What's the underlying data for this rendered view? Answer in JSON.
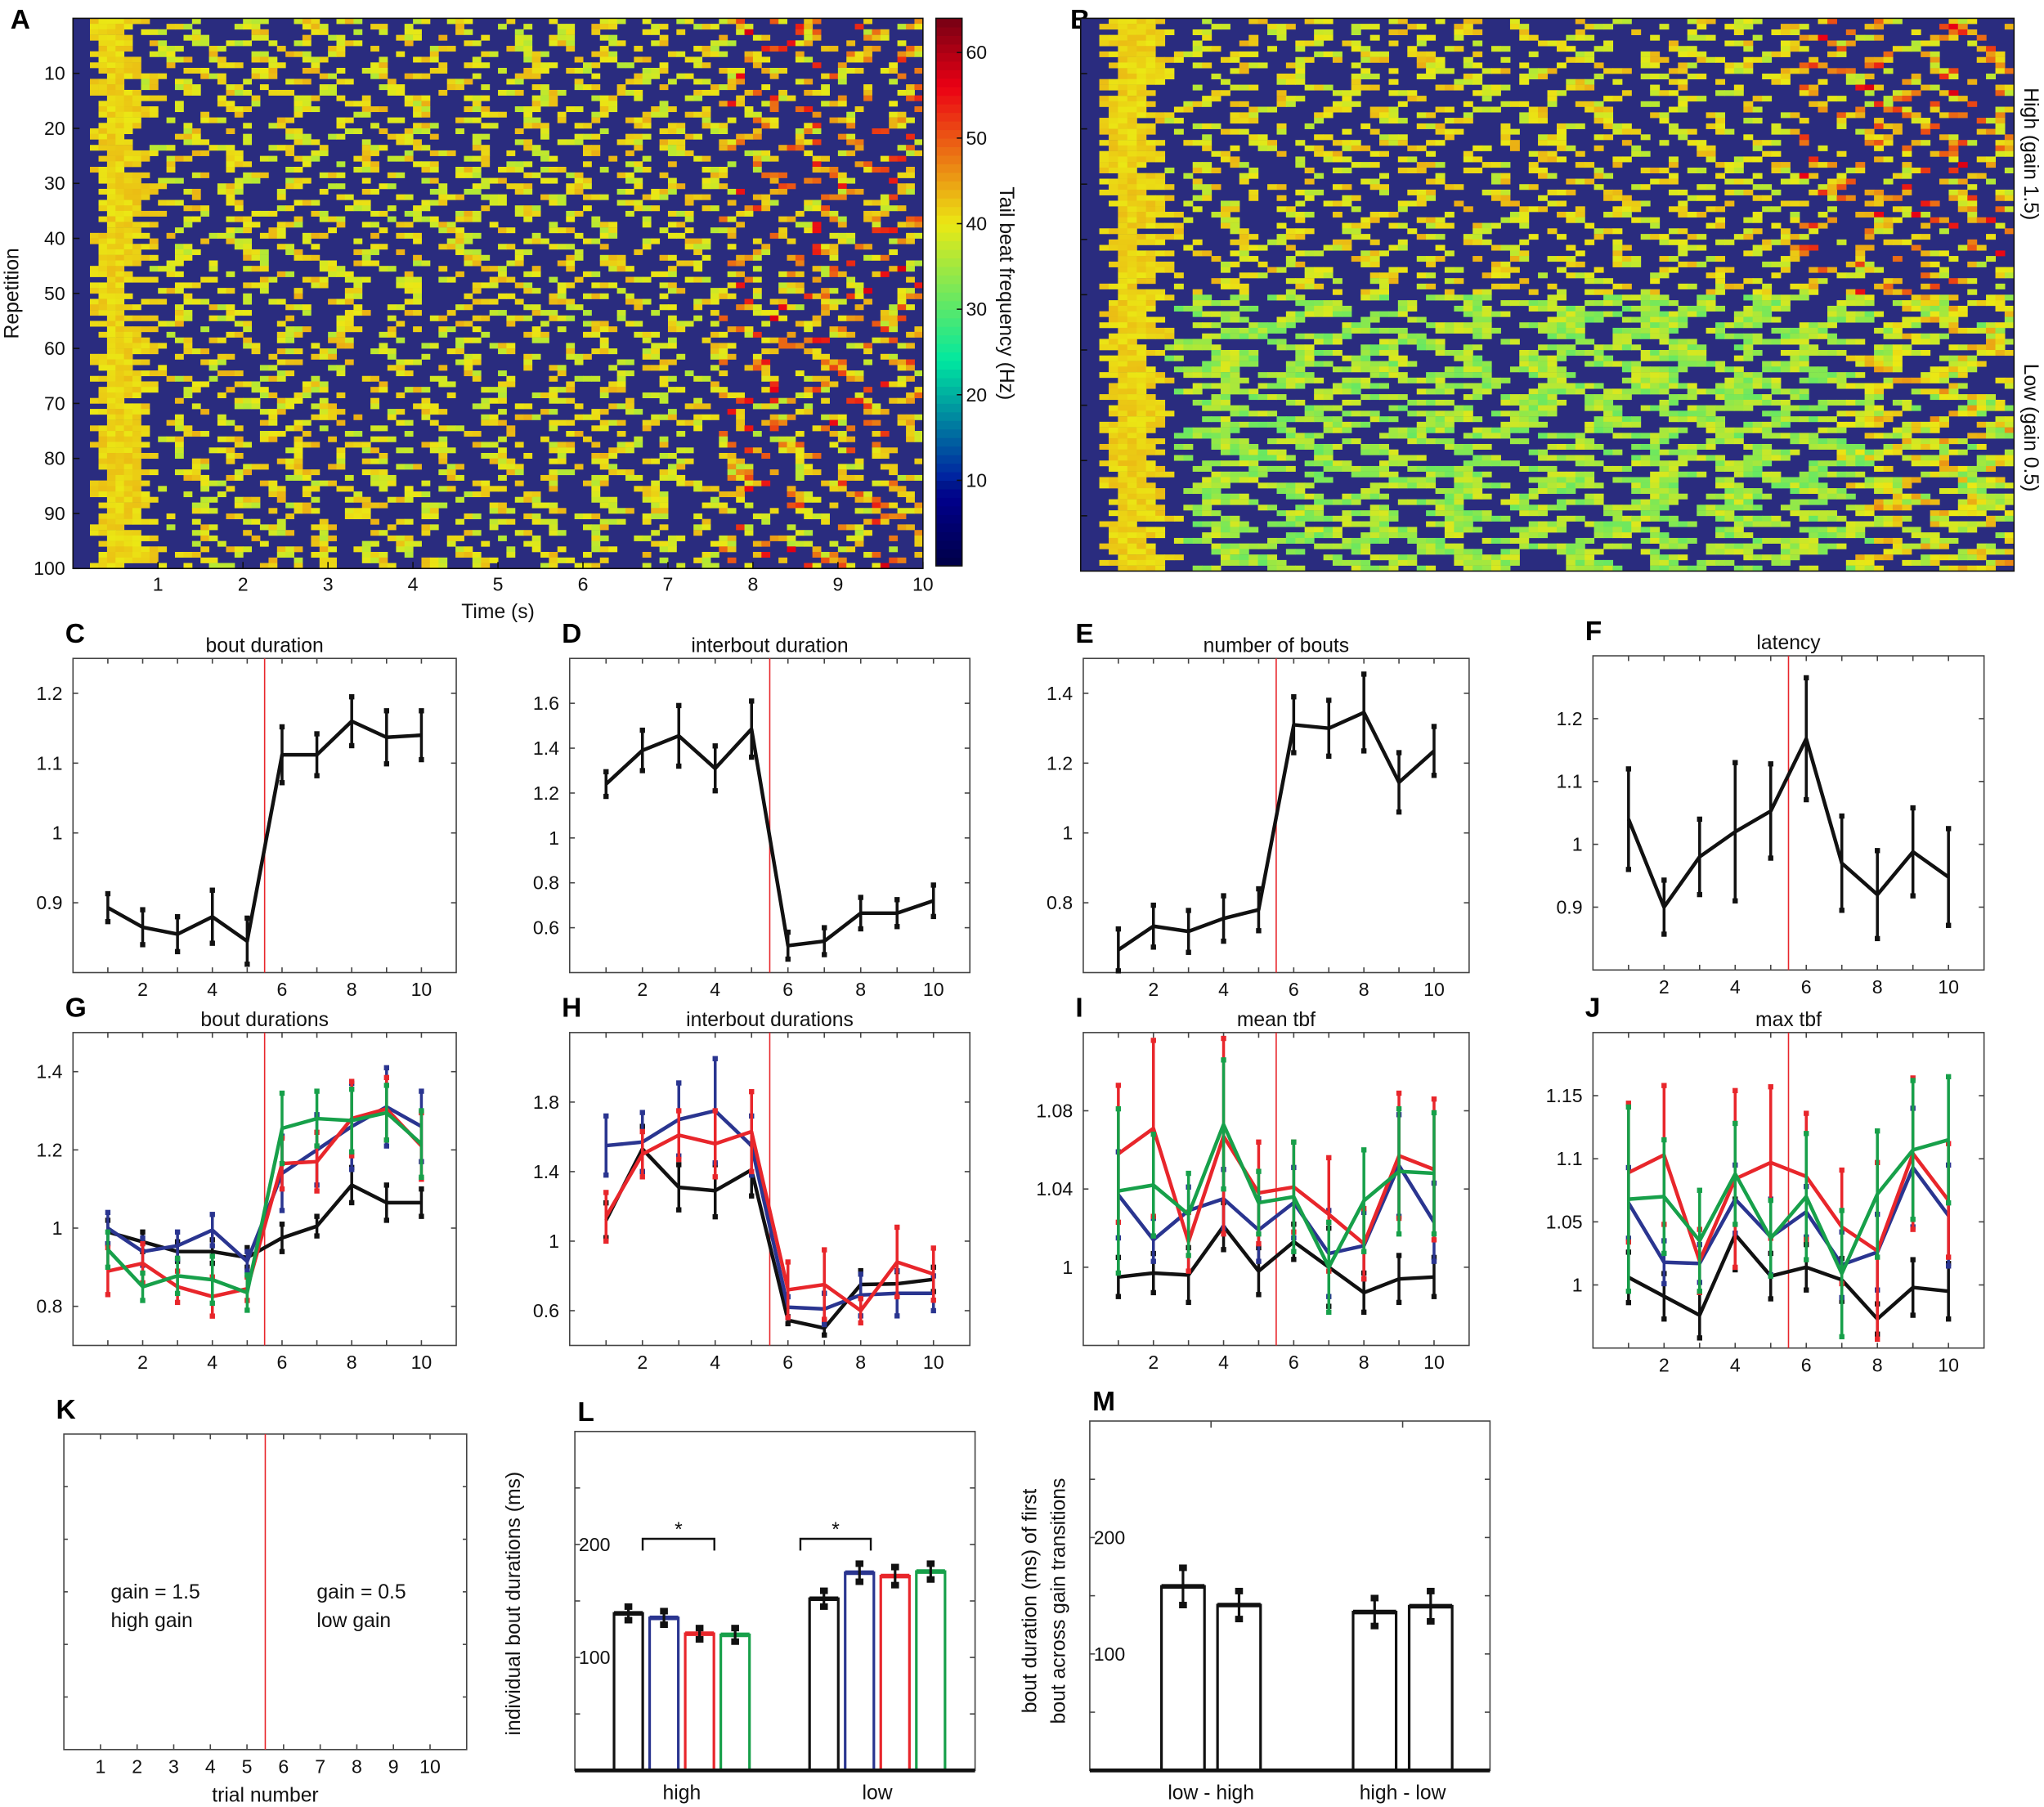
{
  "chart_data": [
    {
      "panel": "A",
      "type": "heatmap",
      "xlabel": "Time (s)",
      "ylabel": "Repetition",
      "rows": 100,
      "xlim": [
        0,
        10
      ],
      "xticks": [
        1,
        2,
        3,
        4,
        5,
        6,
        7,
        8,
        9,
        10
      ],
      "yticks": [
        10,
        20,
        30,
        40,
        50,
        60,
        70,
        80,
        90,
        100
      ],
      "colorbar": {
        "label": "Tail beat frequency (Hz)",
        "range": [
          0,
          64
        ],
        "ticks": [
          10,
          20,
          30,
          40,
          50,
          60
        ]
      }
    },
    {
      "panel": "B",
      "type": "heatmap",
      "rows": 100,
      "xlim": [
        0,
        10
      ],
      "right_labels": [
        "High (gain 1.5)",
        "Low (gain 0.5)"
      ]
    },
    {
      "panel": "C",
      "type": "line",
      "title": "bout duration",
      "x": [
        1,
        2,
        3,
        4,
        5,
        6,
        7,
        8,
        9,
        10
      ],
      "xlim": [
        0,
        11
      ],
      "ylim": [
        0.8,
        1.25
      ],
      "xticks": [
        2,
        4,
        6,
        8,
        10
      ],
      "yticks": [
        0.9,
        1,
        1.1,
        1.2
      ],
      "yticklabels": [
        "0.9",
        "1",
        "1.1",
        "1.2"
      ],
      "vline": 5.5,
      "series": [
        {
          "color": "#111111",
          "values": [
            0.893,
            0.865,
            0.855,
            0.88,
            0.845,
            1.112,
            1.112,
            1.16,
            1.137,
            1.14
          ],
          "errors": [
            0.02,
            0.025,
            0.025,
            0.038,
            0.033,
            0.04,
            0.03,
            0.035,
            0.038,
            0.035
          ]
        }
      ]
    },
    {
      "panel": "D",
      "type": "line",
      "title": "interbout duration",
      "x": [
        1,
        2,
        3,
        4,
        5,
        6,
        7,
        8,
        9,
        10
      ],
      "xlim": [
        0,
        11
      ],
      "ylim": [
        0.4,
        1.8
      ],
      "xticks": [
        2,
        4,
        6,
        8,
        10
      ],
      "yticks": [
        0.6,
        0.8,
        1,
        1.2,
        1.4,
        1.6
      ],
      "yticklabels": [
        "0.6",
        "0.8",
        "1",
        "1.2",
        "1.4",
        "1.6"
      ],
      "vline": 5.5,
      "series": [
        {
          "color": "#111111",
          "values": [
            1.24,
            1.39,
            1.455,
            1.31,
            1.485,
            0.52,
            0.54,
            0.665,
            0.665,
            0.72
          ],
          "errors": [
            0.055,
            0.09,
            0.135,
            0.1,
            0.125,
            0.06,
            0.06,
            0.07,
            0.06,
            0.07
          ]
        }
      ]
    },
    {
      "panel": "E",
      "type": "line",
      "title": "number of bouts",
      "x": [
        1,
        2,
        3,
        4,
        5,
        6,
        7,
        8,
        9,
        10
      ],
      "xlim": [
        0,
        11
      ],
      "ylim": [
        0.6,
        1.5
      ],
      "xticks": [
        2,
        4,
        6,
        8,
        10
      ],
      "yticks": [
        0.8,
        1,
        1.2,
        1.4
      ],
      "yticklabels": [
        "0.8",
        "1",
        "1.2",
        "1.4"
      ],
      "vline": 5.5,
      "series": [
        {
          "color": "#111111",
          "values": [
            0.665,
            0.733,
            0.718,
            0.755,
            0.78,
            1.31,
            1.3,
            1.345,
            1.145,
            1.235
          ],
          "errors": [
            0.06,
            0.06,
            0.06,
            0.065,
            0.06,
            0.08,
            0.08,
            0.11,
            0.085,
            0.07
          ]
        }
      ]
    },
    {
      "panel": "F",
      "type": "line",
      "title": "latency",
      "x": [
        1,
        2,
        3,
        4,
        5,
        6,
        7,
        8,
        9,
        10
      ],
      "xlim": [
        0,
        11
      ],
      "ylim": [
        0.8,
        1.3
      ],
      "xticks": [
        2,
        4,
        6,
        8,
        10
      ],
      "yticks": [
        0.9,
        1,
        1.1,
        1.2
      ],
      "yticklabels": [
        "0.9",
        "1",
        "1.1",
        "1.2"
      ],
      "vline": 5.5,
      "series": [
        {
          "color": "#111111",
          "values": [
            1.04,
            0.9,
            0.98,
            1.02,
            1.053,
            1.168,
            0.97,
            0.92,
            0.988,
            0.948
          ],
          "errors": [
            0.08,
            0.043,
            0.06,
            0.11,
            0.075,
            0.097,
            0.075,
            0.07,
            0.07,
            0.077
          ]
        }
      ]
    },
    {
      "panel": "G",
      "type": "line",
      "title": "bout durations",
      "x": [
        1,
        2,
        3,
        4,
        5,
        6,
        7,
        8,
        9,
        10
      ],
      "xlim": [
        0,
        11
      ],
      "ylim": [
        0.7,
        1.5
      ],
      "xticks": [
        2,
        4,
        6,
        8,
        10
      ],
      "yticks": [
        0.8,
        1,
        1.2,
        1.4
      ],
      "yticklabels": [
        "0.8",
        "1",
        "1.2",
        "1.4"
      ],
      "vline": 5.5,
      "series": [
        {
          "color": "#111111",
          "values": [
            0.99,
            0.965,
            0.94,
            0.94,
            0.925,
            0.975,
            1.005,
            1.11,
            1.065,
            1.065
          ],
          "errors": [
            0.03,
            0.025,
            0.025,
            0.03,
            0.025,
            0.035,
            0.025,
            0.045,
            0.045,
            0.035
          ]
        },
        {
          "color": "#2a3590",
          "values": [
            1.0,
            0.94,
            0.955,
            0.995,
            0.915,
            1.14,
            1.2,
            1.26,
            1.31,
            1.26
          ],
          "errors": [
            0.04,
            0.035,
            0.035,
            0.04,
            0.025,
            0.095,
            0.09,
            0.11,
            0.1,
            0.09
          ]
        },
        {
          "color": "#e8262b",
          "values": [
            0.89,
            0.91,
            0.85,
            0.825,
            0.845,
            1.165,
            1.17,
            1.28,
            1.305,
            1.21
          ],
          "errors": [
            0.06,
            0.05,
            0.04,
            0.05,
            0.03,
            0.065,
            0.075,
            0.095,
            0.08,
            0.085
          ]
        },
        {
          "color": "#17a04a",
          "values": [
            0.945,
            0.85,
            0.878,
            0.868,
            0.835,
            1.255,
            1.28,
            1.275,
            1.295,
            1.215
          ],
          "errors": [
            0.045,
            0.035,
            0.045,
            0.06,
            0.045,
            0.09,
            0.07,
            0.08,
            0.07,
            0.085
          ]
        }
      ]
    },
    {
      "panel": "H",
      "type": "line",
      "title": "interbout durations",
      "x": [
        1,
        2,
        3,
        4,
        5,
        6,
        7,
        8,
        9,
        10
      ],
      "xlim": [
        0,
        11
      ],
      "ylim": [
        0.4,
        2.2
      ],
      "xticks": [
        2,
        4,
        6,
        8,
        10
      ],
      "yticks": [
        0.6,
        1,
        1.4,
        1.8
      ],
      "yticklabels": [
        "0.6",
        "1",
        "1.4",
        "1.8"
      ],
      "vline": 5.5,
      "series": [
        {
          "color": "#111111",
          "values": [
            1.12,
            1.53,
            1.31,
            1.29,
            1.41,
            0.545,
            0.5,
            0.75,
            0.755,
            0.78
          ],
          "errors": [
            0.1,
            0.13,
            0.13,
            0.15,
            0.15,
            0.02,
            0.04,
            0.08,
            0.07,
            0.07
          ]
        },
        {
          "color": "#2a3590",
          "values": [
            1.55,
            1.57,
            1.7,
            1.75,
            1.55,
            0.62,
            0.61,
            0.69,
            0.7,
            0.7
          ],
          "errors": [
            0.17,
            0.17,
            0.21,
            0.3,
            0.17,
            0.06,
            0.09,
            0.12,
            0.13,
            0.1
          ]
        },
        {
          "color": "#e8262b",
          "values": [
            1.14,
            1.5,
            1.61,
            1.56,
            1.63,
            0.72,
            0.75,
            0.6,
            0.88,
            0.81
          ],
          "errors": [
            0.14,
            0.13,
            0.14,
            0.19,
            0.23,
            0.16,
            0.2,
            0.07,
            0.2,
            0.15
          ]
        }
      ]
    },
    {
      "panel": "I",
      "type": "line",
      "title": "mean tbf",
      "x": [
        1,
        2,
        3,
        4,
        5,
        6,
        7,
        8,
        9,
        10
      ],
      "xlim": [
        0,
        11
      ],
      "ylim": [
        0.96,
        1.12
      ],
      "xticks": [
        2,
        4,
        6,
        8,
        10
      ],
      "yticks": [
        1,
        1.04,
        1.08
      ],
      "yticklabels": [
        "1",
        "1.04",
        "1.08"
      ],
      "vline": 5.5,
      "series": [
        {
          "color": "#111111",
          "values": [
            0.995,
            0.997,
            0.996,
            1.021,
            0.998,
            1.013,
            1.0,
            0.987,
            0.994,
            0.995
          ],
          "errors": [
            0.01,
            0.01,
            0.014,
            0.012,
            0.012,
            0.009,
            0.02,
            0.01,
            0.012,
            0.01
          ]
        },
        {
          "color": "#2a3590",
          "values": [
            1.037,
            1.014,
            1.029,
            1.035,
            1.019,
            1.033,
            1.007,
            1.011,
            1.052,
            1.023
          ],
          "errors": [
            0.022,
            0.011,
            0.012,
            0.015,
            0.016,
            0.018,
            0.022,
            0.017,
            0.026,
            0.02
          ]
        },
        {
          "color": "#e8262b",
          "values": [
            1.058,
            1.071,
            1.013,
            1.067,
            1.038,
            1.041,
            1.027,
            1.012,
            1.057,
            1.05
          ],
          "errors": [
            0.035,
            0.045,
            0.015,
            0.05,
            0.026,
            0.023,
            0.029,
            0.018,
            0.032,
            0.036
          ]
        },
        {
          "color": "#17a04a",
          "values": [
            1.039,
            1.042,
            1.027,
            1.073,
            1.033,
            1.036,
            1.0,
            1.034,
            1.049,
            1.048
          ],
          "errors": [
            0.042,
            0.026,
            0.021,
            0.033,
            0.016,
            0.028,
            0.023,
            0.026,
            0.032,
            0.031
          ]
        }
      ]
    },
    {
      "panel": "J",
      "type": "line",
      "title": "max tbf",
      "x": [
        1,
        2,
        3,
        4,
        5,
        6,
        7,
        8,
        9,
        10
      ],
      "xlim": [
        0,
        11
      ],
      "ylim": [
        0.95,
        1.2
      ],
      "xticks": [
        2,
        4,
        6,
        8,
        10
      ],
      "yticks": [
        1,
        1.05,
        1.1,
        1.15
      ],
      "yticklabels": [
        "1",
        "1.05",
        "1.1",
        "1.15"
      ],
      "vline": 5.5,
      "series": [
        {
          "color": "#111111",
          "values": [
            1.006,
            0.991,
            0.976,
            1.04,
            1.007,
            1.014,
            1.004,
            0.973,
            0.998,
            0.995
          ],
          "errors": [
            0.02,
            0.018,
            0.018,
            0.028,
            0.018,
            0.018,
            0.017,
            0.012,
            0.022,
            0.022
          ]
        },
        {
          "color": "#2a3590",
          "values": [
            1.065,
            1.018,
            1.017,
            1.068,
            1.038,
            1.058,
            1.016,
            1.026,
            1.093,
            1.055
          ],
          "errors": [
            0.028,
            0.017,
            0.015,
            0.027,
            0.03,
            0.02,
            0.026,
            0.03,
            0.047,
            0.04
          ]
        },
        {
          "color": "#e8262b",
          "values": [
            1.089,
            1.103,
            1.019,
            1.084,
            1.097,
            1.086,
            1.046,
            1.027,
            1.104,
            1.067
          ],
          "errors": [
            0.055,
            0.055,
            0.025,
            0.07,
            0.06,
            0.05,
            0.045,
            0.07,
            0.06,
            0.045
          ]
        },
        {
          "color": "#17a04a",
          "values": [
            1.068,
            1.07,
            1.035,
            1.088,
            1.037,
            1.07,
            1.009,
            1.072,
            1.107,
            1.115
          ],
          "errors": [
            0.073,
            0.045,
            0.04,
            0.04,
            0.03,
            0.05,
            0.05,
            0.05,
            0.055,
            0.05
          ]
        }
      ]
    },
    {
      "panel": "K",
      "type": "line",
      "xlabel": "trial number",
      "xlim": [
        0,
        11
      ],
      "ylim": [
        0,
        1
      ],
      "xticks": [
        1,
        2,
        3,
        4,
        5,
        6,
        7,
        8,
        9,
        10
      ],
      "vline": 5.5,
      "annotations": [
        [
          "gain = 1.5",
          "high gain"
        ],
        [
          "gain = 0.5",
          "low gain"
        ]
      ],
      "series": []
    },
    {
      "panel": "L",
      "type": "bar",
      "ylabel": "individual bout durations (ms)",
      "ylim": [
        0,
        300
      ],
      "yticks": [
        100,
        200
      ],
      "categories": [
        "high",
        "low"
      ],
      "significance": "*",
      "series": [
        {
          "color": "#111111",
          "values": [
            139,
            152
          ],
          "errors": [
            6,
            7
          ]
        },
        {
          "color": "#2a3590",
          "values": [
            135,
            175
          ],
          "errors": [
            6,
            8
          ]
        },
        {
          "color": "#e8262b",
          "values": [
            121,
            172
          ],
          "errors": [
            5,
            8
          ]
        },
        {
          "color": "#17a04a",
          "values": [
            120,
            176
          ],
          "errors": [
            6,
            7
          ]
        }
      ]
    },
    {
      "panel": "M",
      "type": "bar",
      "ylabel": [
        "bout duration (ms) of first",
        "bout across gain transitions"
      ],
      "ylim": [
        0,
        300
      ],
      "yticks": [
        100,
        200
      ],
      "categories": [
        "low - high",
        "high - low"
      ],
      "series": [
        {
          "color": "#111111",
          "values": [
            158,
            136
          ],
          "errors": [
            16,
            12
          ]
        },
        {
          "color": "#111111",
          "values": [
            142,
            141
          ],
          "errors": [
            12,
            13
          ]
        }
      ]
    }
  ]
}
